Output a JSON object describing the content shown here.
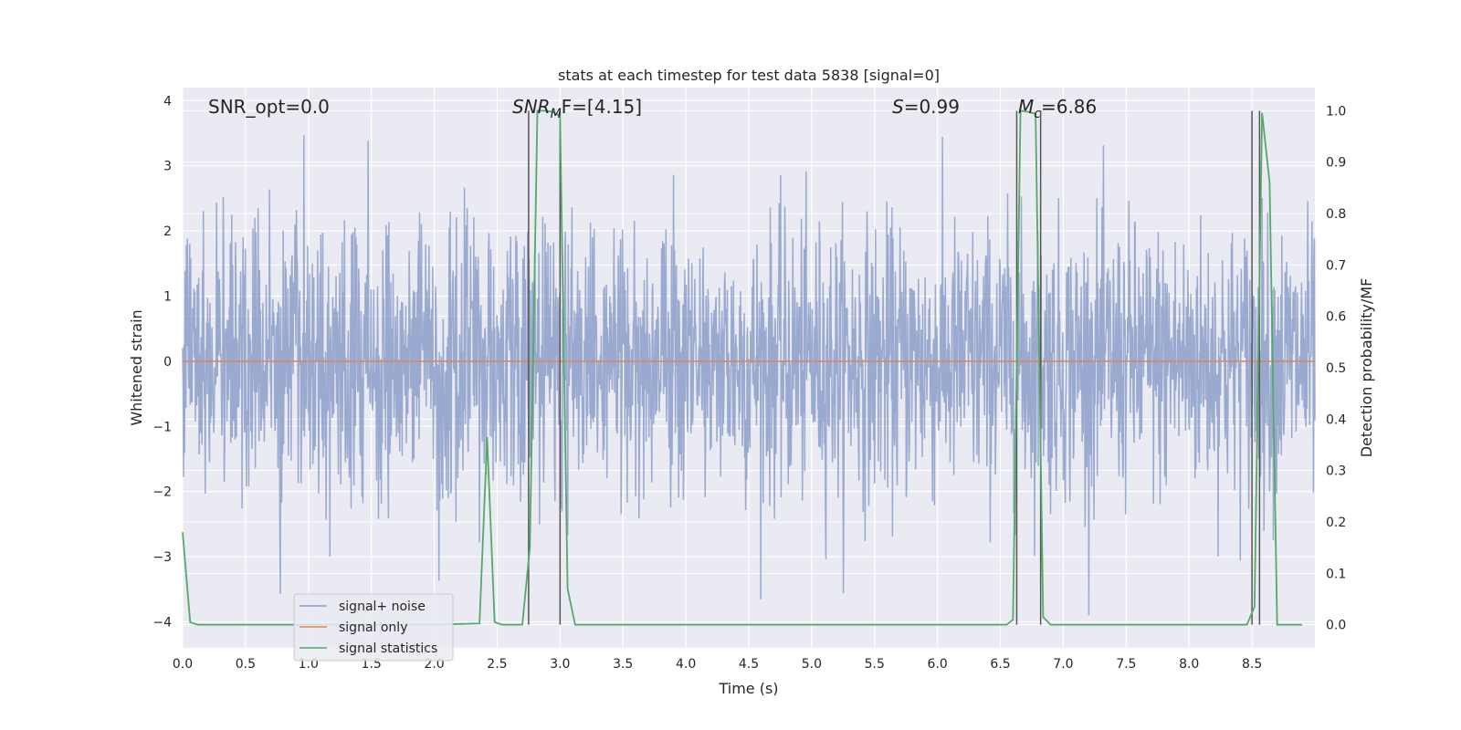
{
  "chart_data": {
    "type": "line",
    "title": "stats at each timestep for test data 5838 [signal=0]",
    "xlabel": "Time (s)",
    "ylabel": "Whitened strain",
    "y2label": "Detection probability/MF",
    "xlim": [
      0.0,
      9.0
    ],
    "ylim": [
      -4.4,
      4.2
    ],
    "y2lim": [
      -0.045,
      1.045
    ],
    "x_ticks": [
      0.0,
      0.5,
      1.0,
      1.5,
      2.0,
      2.5,
      3.0,
      3.5,
      4.0,
      4.5,
      5.0,
      5.5,
      6.0,
      6.5,
      7.0,
      7.5,
      8.0,
      8.5
    ],
    "x_tick_labels": [
      "0.0",
      "0.5",
      "1.0",
      "1.5",
      "2.0",
      "2.5",
      "3.0",
      "3.5",
      "4.0",
      "4.5",
      "5.0",
      "5.5",
      "6.0",
      "6.5",
      "7.0",
      "7.5",
      "8.0",
      "8.5"
    ],
    "y_ticks": [
      -4,
      -3,
      -2,
      -1,
      0,
      1,
      2,
      3,
      4
    ],
    "y_tick_labels": [
      "−4",
      "−3",
      "−2",
      "−1",
      "0",
      "1",
      "2",
      "3",
      "4"
    ],
    "y2_ticks": [
      0.0,
      0.1,
      0.2,
      0.3,
      0.4,
      0.5,
      0.6,
      0.7,
      0.8,
      0.9,
      1.0
    ],
    "y2_tick_labels": [
      "0.0",
      "0.1",
      "0.2",
      "0.3",
      "0.4",
      "0.5",
      "0.6",
      "0.7",
      "0.8",
      "0.9",
      "1.0"
    ],
    "grid": true,
    "legend_position": "lower-left",
    "series": [
      {
        "name": "signal+ noise",
        "color": "#8c9ec9",
        "axis": "left",
        "description_values": "dense noise, amplitude mostly within ±2, peaks to about ±3.8"
      },
      {
        "name": "signal only",
        "color": "#dd8452",
        "axis": "left",
        "x": [
          0.0,
          9.0
        ],
        "y": [
          0.0,
          0.0
        ]
      },
      {
        "name": "signal statistics",
        "color": "#55a868",
        "axis": "right",
        "x": [
          0.0,
          0.06,
          0.12,
          0.5,
          1.0,
          1.5,
          2.0,
          2.36,
          2.42,
          2.48,
          2.54,
          2.6,
          2.7,
          2.76,
          2.82,
          2.88,
          2.94,
          3.0,
          3.06,
          3.12,
          3.5,
          4.0,
          4.5,
          5.0,
          5.5,
          6.0,
          6.55,
          6.6,
          6.66,
          6.72,
          6.78,
          6.84,
          6.9,
          6.96,
          7.5,
          8.0,
          8.46,
          8.52,
          8.58,
          8.64,
          8.7,
          8.76,
          8.82,
          8.9
        ],
        "y": [
          0.18,
          0.005,
          0.0,
          0.0,
          0.0,
          0.0,
          0.0,
          0.0025,
          0.365,
          0.005,
          0.0,
          0.0,
          0.0,
          0.15,
          1.0,
          1.0,
          0.998,
          0.99,
          0.07,
          0.0,
          0.0,
          0.0,
          0.0,
          0.0,
          0.0,
          0.0,
          0.0,
          0.01,
          1.0,
          0.998,
          0.994,
          0.015,
          0.0,
          0.0,
          0.0,
          0.0,
          0.0,
          0.035,
          0.996,
          0.86,
          0.0,
          0.0,
          0.0,
          0.0
        ]
      }
    ],
    "vertical_lines": [
      2.75,
      3.0,
      6.63,
      6.82,
      8.5,
      8.56
    ],
    "annotations": {
      "snr_opt": "SNR_opt=0.0",
      "snr_mf_base": "SNR",
      "snr_mf_sub": "M",
      "snr_mf_rest": "F=[4.15]",
      "s_var": "S",
      "s_rest": "=0.99",
      "mc_base": "M",
      "mc_sub": "c",
      "mc_rest": "=6.86"
    },
    "legend": [
      "signal+ noise",
      "signal only",
      "signal statistics"
    ]
  }
}
